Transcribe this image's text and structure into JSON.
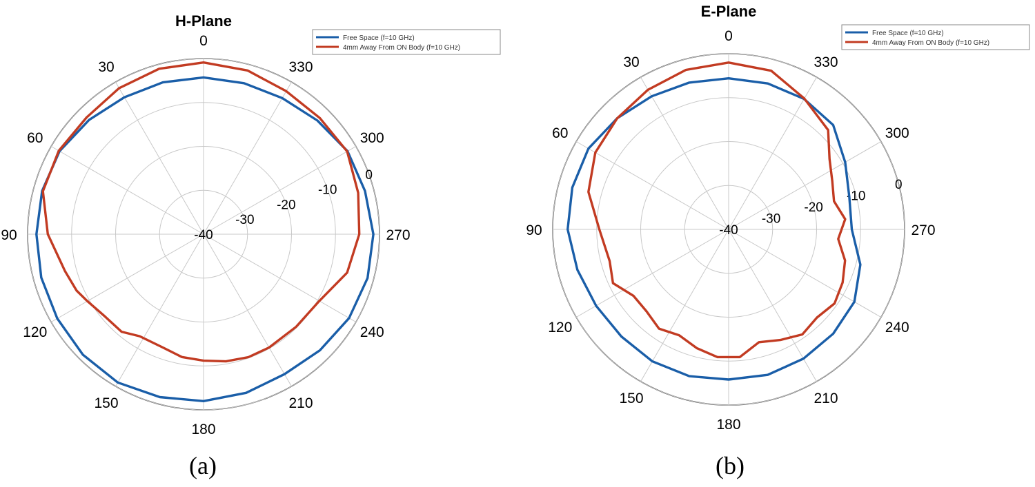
{
  "colors": {
    "free_space": "#1a5ea8",
    "on_body": "#c23b22",
    "grid": "#c8c8c8",
    "outer": "#3a3a3a"
  },
  "figures": [
    {
      "caption": "(a)"
    },
    {
      "caption": "(b)"
    }
  ],
  "chart_data": [
    {
      "type": "polar-line",
      "title": "H-Plane",
      "rlim": [
        -40,
        0
      ],
      "rticks": [
        -40,
        -30,
        -20,
        -10,
        0
      ],
      "theta_ticks": [
        0,
        30,
        60,
        90,
        120,
        150,
        180,
        210,
        240,
        270,
        300,
        330
      ],
      "theta_direction": "counterclockwise, 0 at top",
      "grid": true,
      "legend_position": "top-right",
      "series": [
        {
          "name": "Free Space (f=10 GHz)",
          "color": "#1a5ea8",
          "theta": [
            0,
            15,
            30,
            45,
            60,
            75,
            90,
            105,
            120,
            135,
            150,
            165,
            180,
            195,
            210,
            225,
            240,
            255,
            270,
            285,
            300,
            315,
            330,
            345,
            360
          ],
          "r": [
            -4.3,
            -4.2,
            -4.0,
            -3.2,
            -2.2,
            -2.0,
            -2.0,
            -1.8,
            -1.6,
            -1.2,
            -1.0,
            -1.6,
            -2.0,
            -2.6,
            -3.2,
            -2.6,
            -1.8,
            -1.4,
            -1.4,
            -2.0,
            -2.2,
            -3.4,
            -4.2,
            -4.4,
            -4.3
          ]
        },
        {
          "name": "4mm Away From ON Body (f=10 GHz)",
          "color": "#c23b22",
          "theta": [
            0,
            15,
            30,
            45,
            60,
            75,
            90,
            105,
            114,
            120,
            130,
            140,
            148,
            160,
            170,
            180,
            190,
            200,
            210,
            225,
            240,
            255,
            270,
            285,
            300,
            315,
            330,
            345,
            360
          ],
          "r": [
            -0.9,
            -1.0,
            -1.6,
            -2.4,
            -2.0,
            -2.2,
            -4.6,
            -7.4,
            -8.4,
            -9.5,
            -10.8,
            -11.0,
            -12.6,
            -12.6,
            -11.6,
            -11.2,
            -10.6,
            -10.2,
            -10.2,
            -10.2,
            -9.6,
            -6.2,
            -4.6,
            -3.6,
            -2.3,
            -2.6,
            -2.4,
            -1.4,
            -0.9
          ]
        }
      ]
    },
    {
      "type": "polar-line",
      "title": "E-Plane",
      "rlim": [
        -40,
        0
      ],
      "rticks": [
        -40,
        -30,
        -20,
        -10,
        0
      ],
      "theta_ticks": [
        0,
        30,
        60,
        90,
        120,
        150,
        180,
        210,
        240,
        270,
        300,
        330
      ],
      "theta_direction": "counterclockwise, 0 at top",
      "grid": true,
      "legend_position": "top-right",
      "series": [
        {
          "name": "Free Space (f=10 GHz)",
          "color": "#1a5ea8",
          "theta": [
            0,
            15,
            30,
            45,
            60,
            75,
            90,
            105,
            120,
            135,
            150,
            165,
            180,
            195,
            210,
            225,
            240,
            255,
            270,
            285,
            300,
            315,
            330,
            345,
            360
          ],
          "r": [
            -5.6,
            -5.4,
            -5.0,
            -4.2,
            -3.2,
            -3.2,
            -3.4,
            -4.4,
            -5.2,
            -5.5,
            -5.3,
            -5.4,
            -5.8,
            -5.7,
            -6.0,
            -6.4,
            -7.0,
            -9.0,
            -12.0,
            -11.6,
            -9.4,
            -6.4,
            -5.7,
            -5.6,
            -5.6
          ]
        },
        {
          "name": "4mm Away From ON Body (f=10 GHz)",
          "color": "#c23b22",
          "theta": [
            0,
            15,
            30,
            45,
            60,
            75,
            90,
            105,
            115,
            125,
            135,
            145,
            155,
            165,
            175,
            185,
            195,
            205,
            215,
            225,
            235,
            245,
            255,
            265,
            275,
            285,
            295,
            305,
            315,
            330,
            345,
            360
          ],
          "r": [
            -2.0,
            -2.4,
            -3.3,
            -4.2,
            -5.0,
            -7.0,
            -10.6,
            -12.0,
            -11.0,
            -13.6,
            -13.6,
            -12.4,
            -13.4,
            -12.0,
            -10.8,
            -10.8,
            -13.4,
            -12.2,
            -10.8,
            -11.6,
            -10.6,
            -11.4,
            -12.6,
            -15.0,
            -13.4,
            -15.2,
            -14.0,
            -12.0,
            -8.0,
            -5.6,
            -2.6,
            -2.0
          ]
        }
      ]
    }
  ]
}
